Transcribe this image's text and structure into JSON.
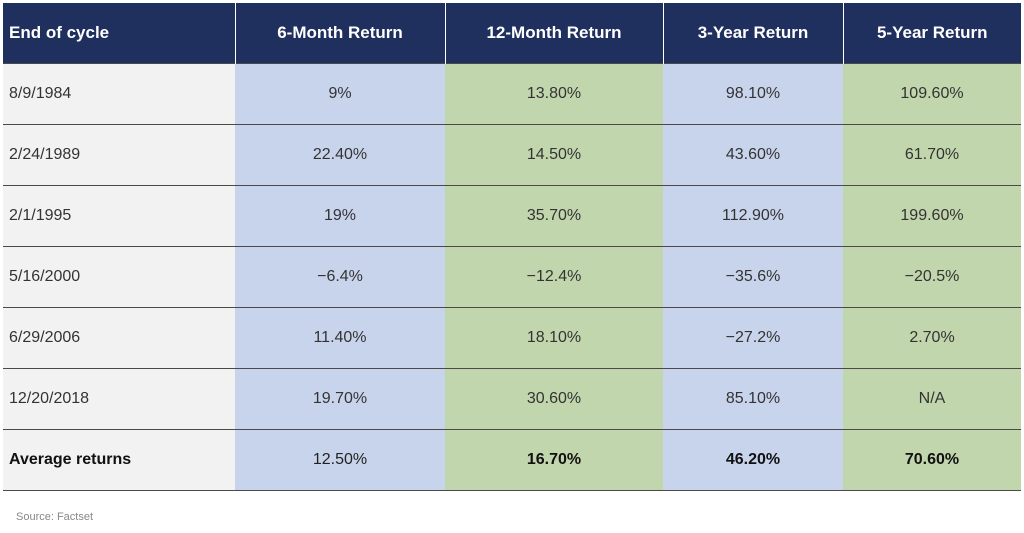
{
  "chart_data": {
    "type": "table",
    "columns": [
      "End of cycle",
      "6-Month Return",
      "12-Month Return",
      "3-Year Return",
      "5-Year Return"
    ],
    "rows": [
      [
        "8/9/1984",
        "9%",
        "13.80%",
        "98.10%",
        "109.60%"
      ],
      [
        "2/24/1989",
        "22.40%",
        "14.50%",
        "43.60%",
        "61.70%"
      ],
      [
        "2/1/1995",
        "19%",
        "35.70%",
        "112.90%",
        "199.60%"
      ],
      [
        "5/16/2000",
        "−6.4%",
        "−12.4%",
        "−35.6%",
        "−20.5%"
      ],
      [
        "6/29/2006",
        "11.40%",
        "18.10%",
        "−27.2%",
        "2.70%"
      ],
      [
        "12/20/2018",
        "19.70%",
        "30.60%",
        "85.10%",
        "N/A"
      ]
    ],
    "summary_row": [
      "Average returns",
      "12.50%",
      "16.70%",
      "46.20%",
      "70.60%"
    ],
    "column_colors": [
      "#f2f2f2",
      "#c8d4ec",
      "#c2d6ad",
      "#c8d4ec",
      "#c2d6ad"
    ],
    "header_color": "#1f2f5e"
  },
  "source": "Source: Factset"
}
